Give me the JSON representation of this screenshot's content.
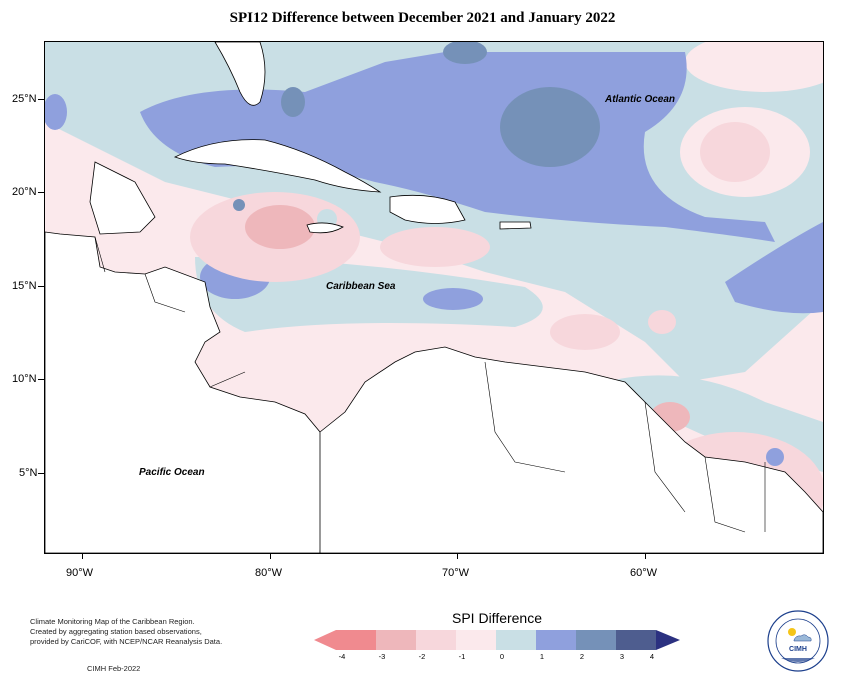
{
  "title": "SPI12 Difference between December 2021 and January 2022",
  "map": {
    "latitude_labels": [
      "25°N",
      "20°N",
      "15°N",
      "10°N",
      "5°N"
    ],
    "longitude_labels": [
      "90°W",
      "80°W",
      "70°W",
      "60°W"
    ],
    "ocean_labels": {
      "atlantic": "Atlantic Ocean",
      "caribbean": "Caribbean Sea",
      "pacific": "Pacific Ocean"
    },
    "colors": {
      "land": "#ffffff",
      "coast": "#000000"
    }
  },
  "legend": {
    "title": "SPI Difference",
    "ticks": [
      "-4",
      "-3",
      "-2",
      "-1",
      "0",
      "1",
      "2",
      "3",
      "4"
    ],
    "colors": [
      "#f08a8f",
      "#eeb7bb",
      "#f7d7dc",
      "#fbe9ec",
      "#c9dfe5",
      "#8fa0dd",
      "#7591b8",
      "#4e5d8f",
      "#2b3180"
    ]
  },
  "footer": {
    "description_lines": [
      "Climate Monitoring Map of the Caribbean Region.",
      "Created by aggregating station based observations,",
      "provided by CariCOF, with NCEP/NCAR Reanalysis Data."
    ],
    "credit": "CIMH Feb-2022"
  },
  "logo": {
    "text": "CIMH",
    "icon": "sun-cloud-icon"
  }
}
